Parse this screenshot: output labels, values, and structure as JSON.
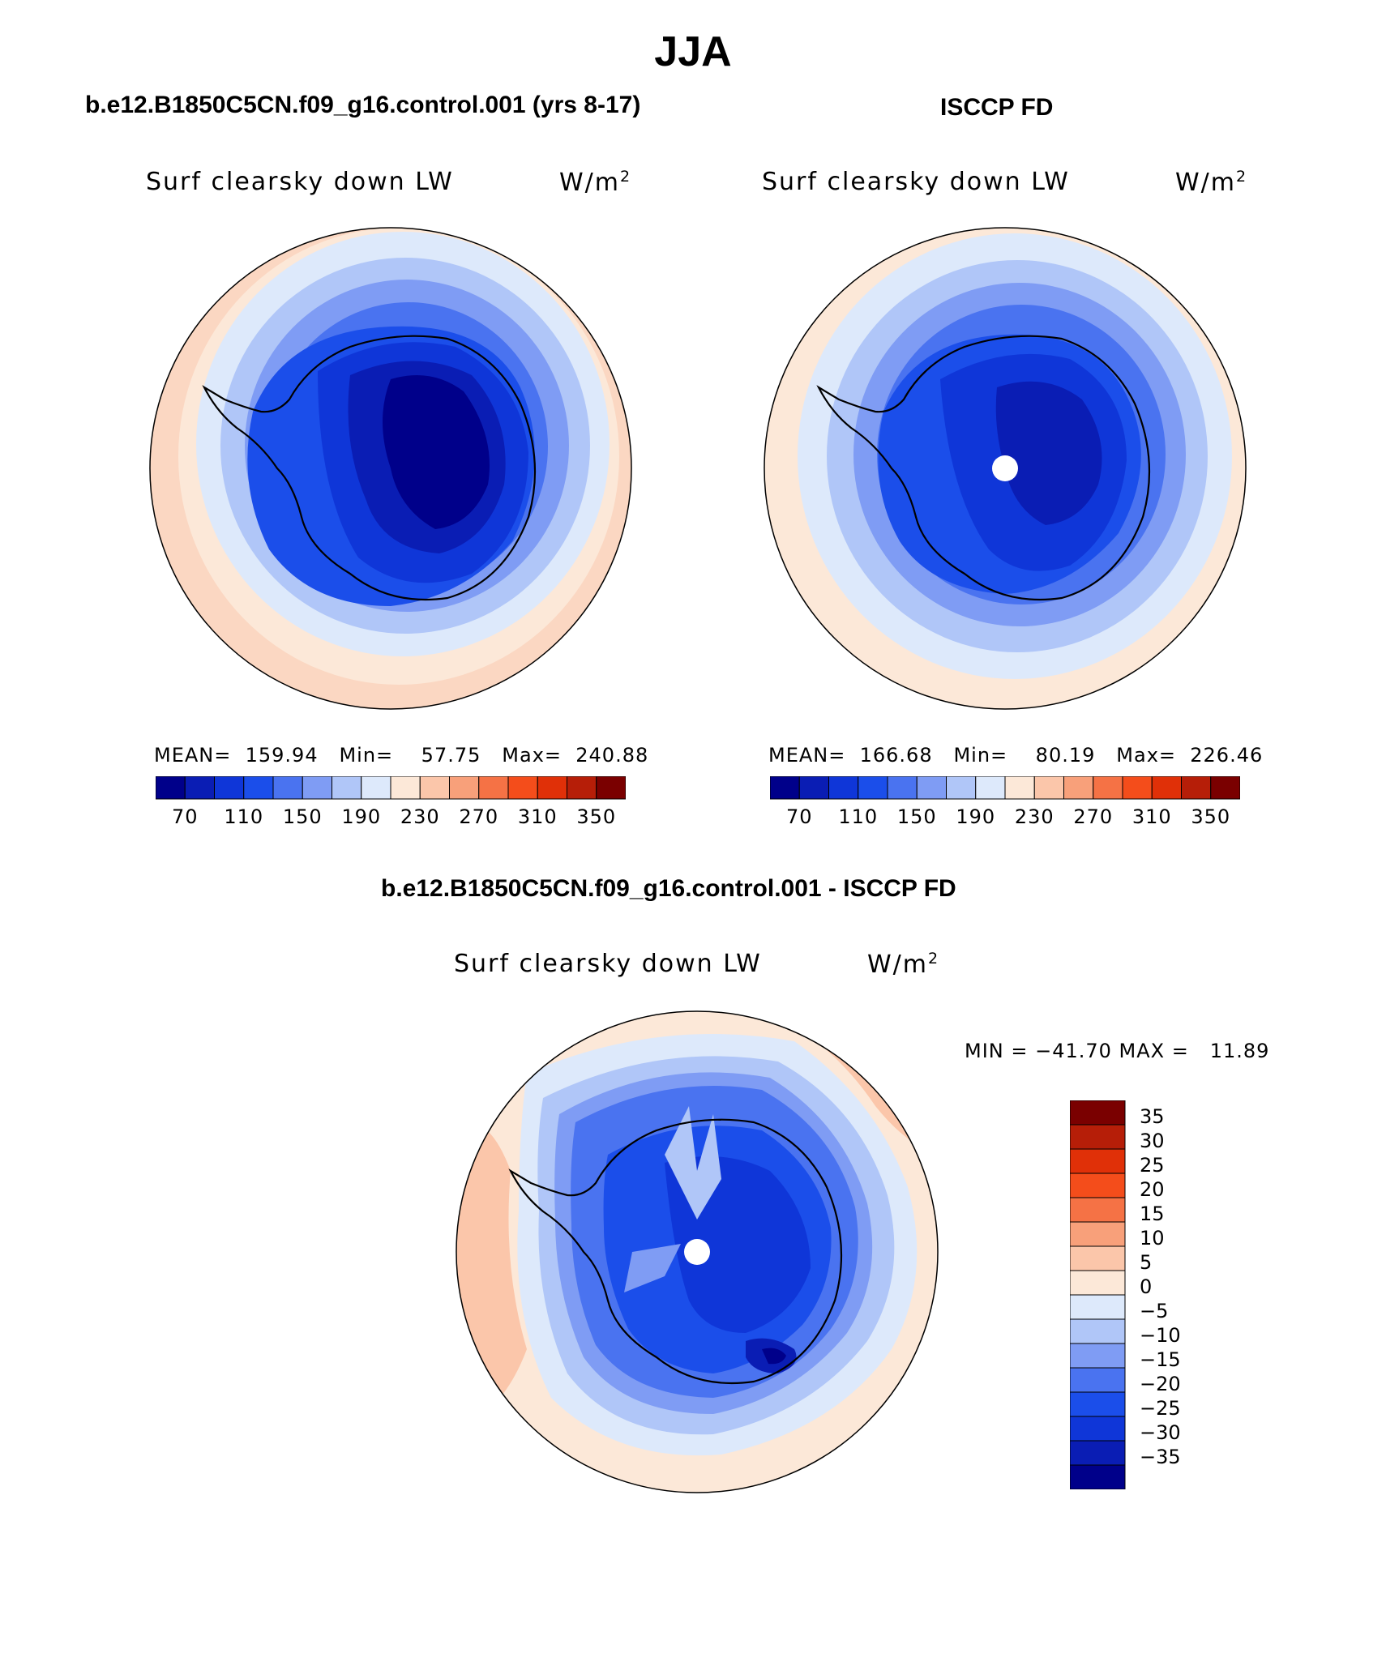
{
  "figure": {
    "title": "JJA",
    "panels": [
      {
        "id": "model",
        "header": "b.e12.B1850C5CN.f09_g16.control.001 (yrs 8-17)",
        "variable": "Surf clearsky down LW",
        "units": "W/m",
        "units_exp": "2",
        "stats": "MEAN=  159.94   Min=    57.75   Max=  240.88",
        "polar_hole": false
      },
      {
        "id": "obs",
        "header": "ISCCP FD",
        "variable": "Surf clearsky down LW",
        "units": "W/m",
        "units_exp": "2",
        "stats": "MEAN=  166.68   Min=    80.19   Max=  226.46",
        "polar_hole": true
      }
    ],
    "diff_panel": {
      "header": "b.e12.B1850C5CN.f09_g16.control.001 - ISCCP FD",
      "variable": "Surf clearsky down LW",
      "units": "W/m",
      "units_exp": "2",
      "minmax": "MIN = −41.70 MAX =   11.89",
      "polar_hole": true
    }
  },
  "colorbars": {
    "abs": {
      "colors": [
        "#00008a",
        "#0a1db4",
        "#0f36d8",
        "#1b4eea",
        "#4a73f0",
        "#7f9cf4",
        "#b0c6f8",
        "#dde9fb",
        "#fce8d8",
        "#fbc6aa",
        "#f8a07a",
        "#f57245",
        "#f44d1b",
        "#e03008",
        "#b61e08",
        "#7a0000"
      ],
      "labels": [
        "70",
        "110",
        "150",
        "190",
        "230",
        "270",
        "310",
        "350"
      ]
    },
    "diff": {
      "colors": [
        "#7a0000",
        "#b61e08",
        "#e03008",
        "#f44d1b",
        "#f57245",
        "#f8a07a",
        "#fbc6aa",
        "#fce8d8",
        "#dde9fb",
        "#b0c6f8",
        "#7f9cf4",
        "#4a73f0",
        "#1b4eea",
        "#0f36d8",
        "#0a1db4",
        "#00008a"
      ],
      "labels": [
        "35",
        "30",
        "25",
        "20",
        "15",
        "10",
        "5",
        "0",
        "−5",
        "−10",
        "−15",
        "−20",
        "−25",
        "−30",
        "−35"
      ]
    }
  }
}
